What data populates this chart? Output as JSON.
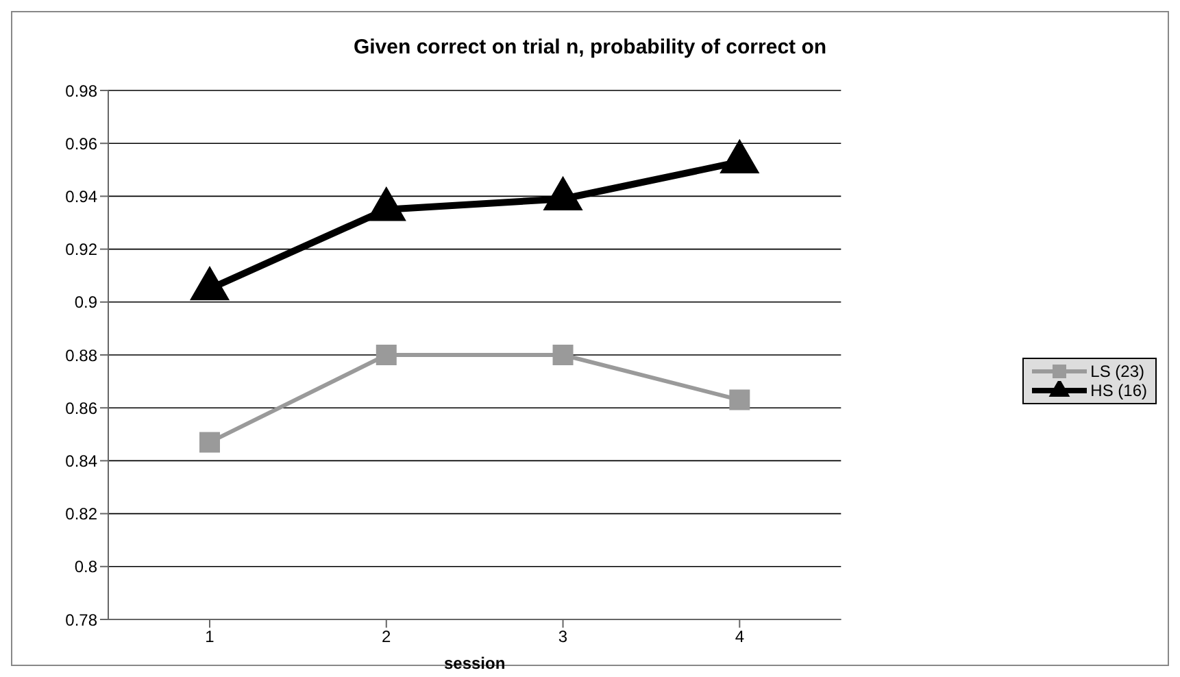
{
  "chart_data": {
    "type": "line",
    "title": "Given correct on trial n, probability of correct on",
    "xlabel": "session",
    "categories": [
      "1",
      "2",
      "3",
      "4"
    ],
    "series": [
      {
        "name": "LS (23)",
        "color": "#9a9a9a",
        "marker": "square",
        "values": [
          0.847,
          0.88,
          0.88,
          0.863
        ]
      },
      {
        "name": "HS (16)",
        "color": "#000000",
        "marker": "triangle",
        "values": [
          0.905,
          0.935,
          0.939,
          0.953
        ]
      }
    ],
    "ylim": [
      0.78,
      0.98
    ],
    "yticks": [
      0.78,
      0.8,
      0.82,
      0.84,
      0.86,
      0.88,
      0.9,
      0.92,
      0.94,
      0.96,
      0.98
    ],
    "grid": "y",
    "legend": "right"
  }
}
